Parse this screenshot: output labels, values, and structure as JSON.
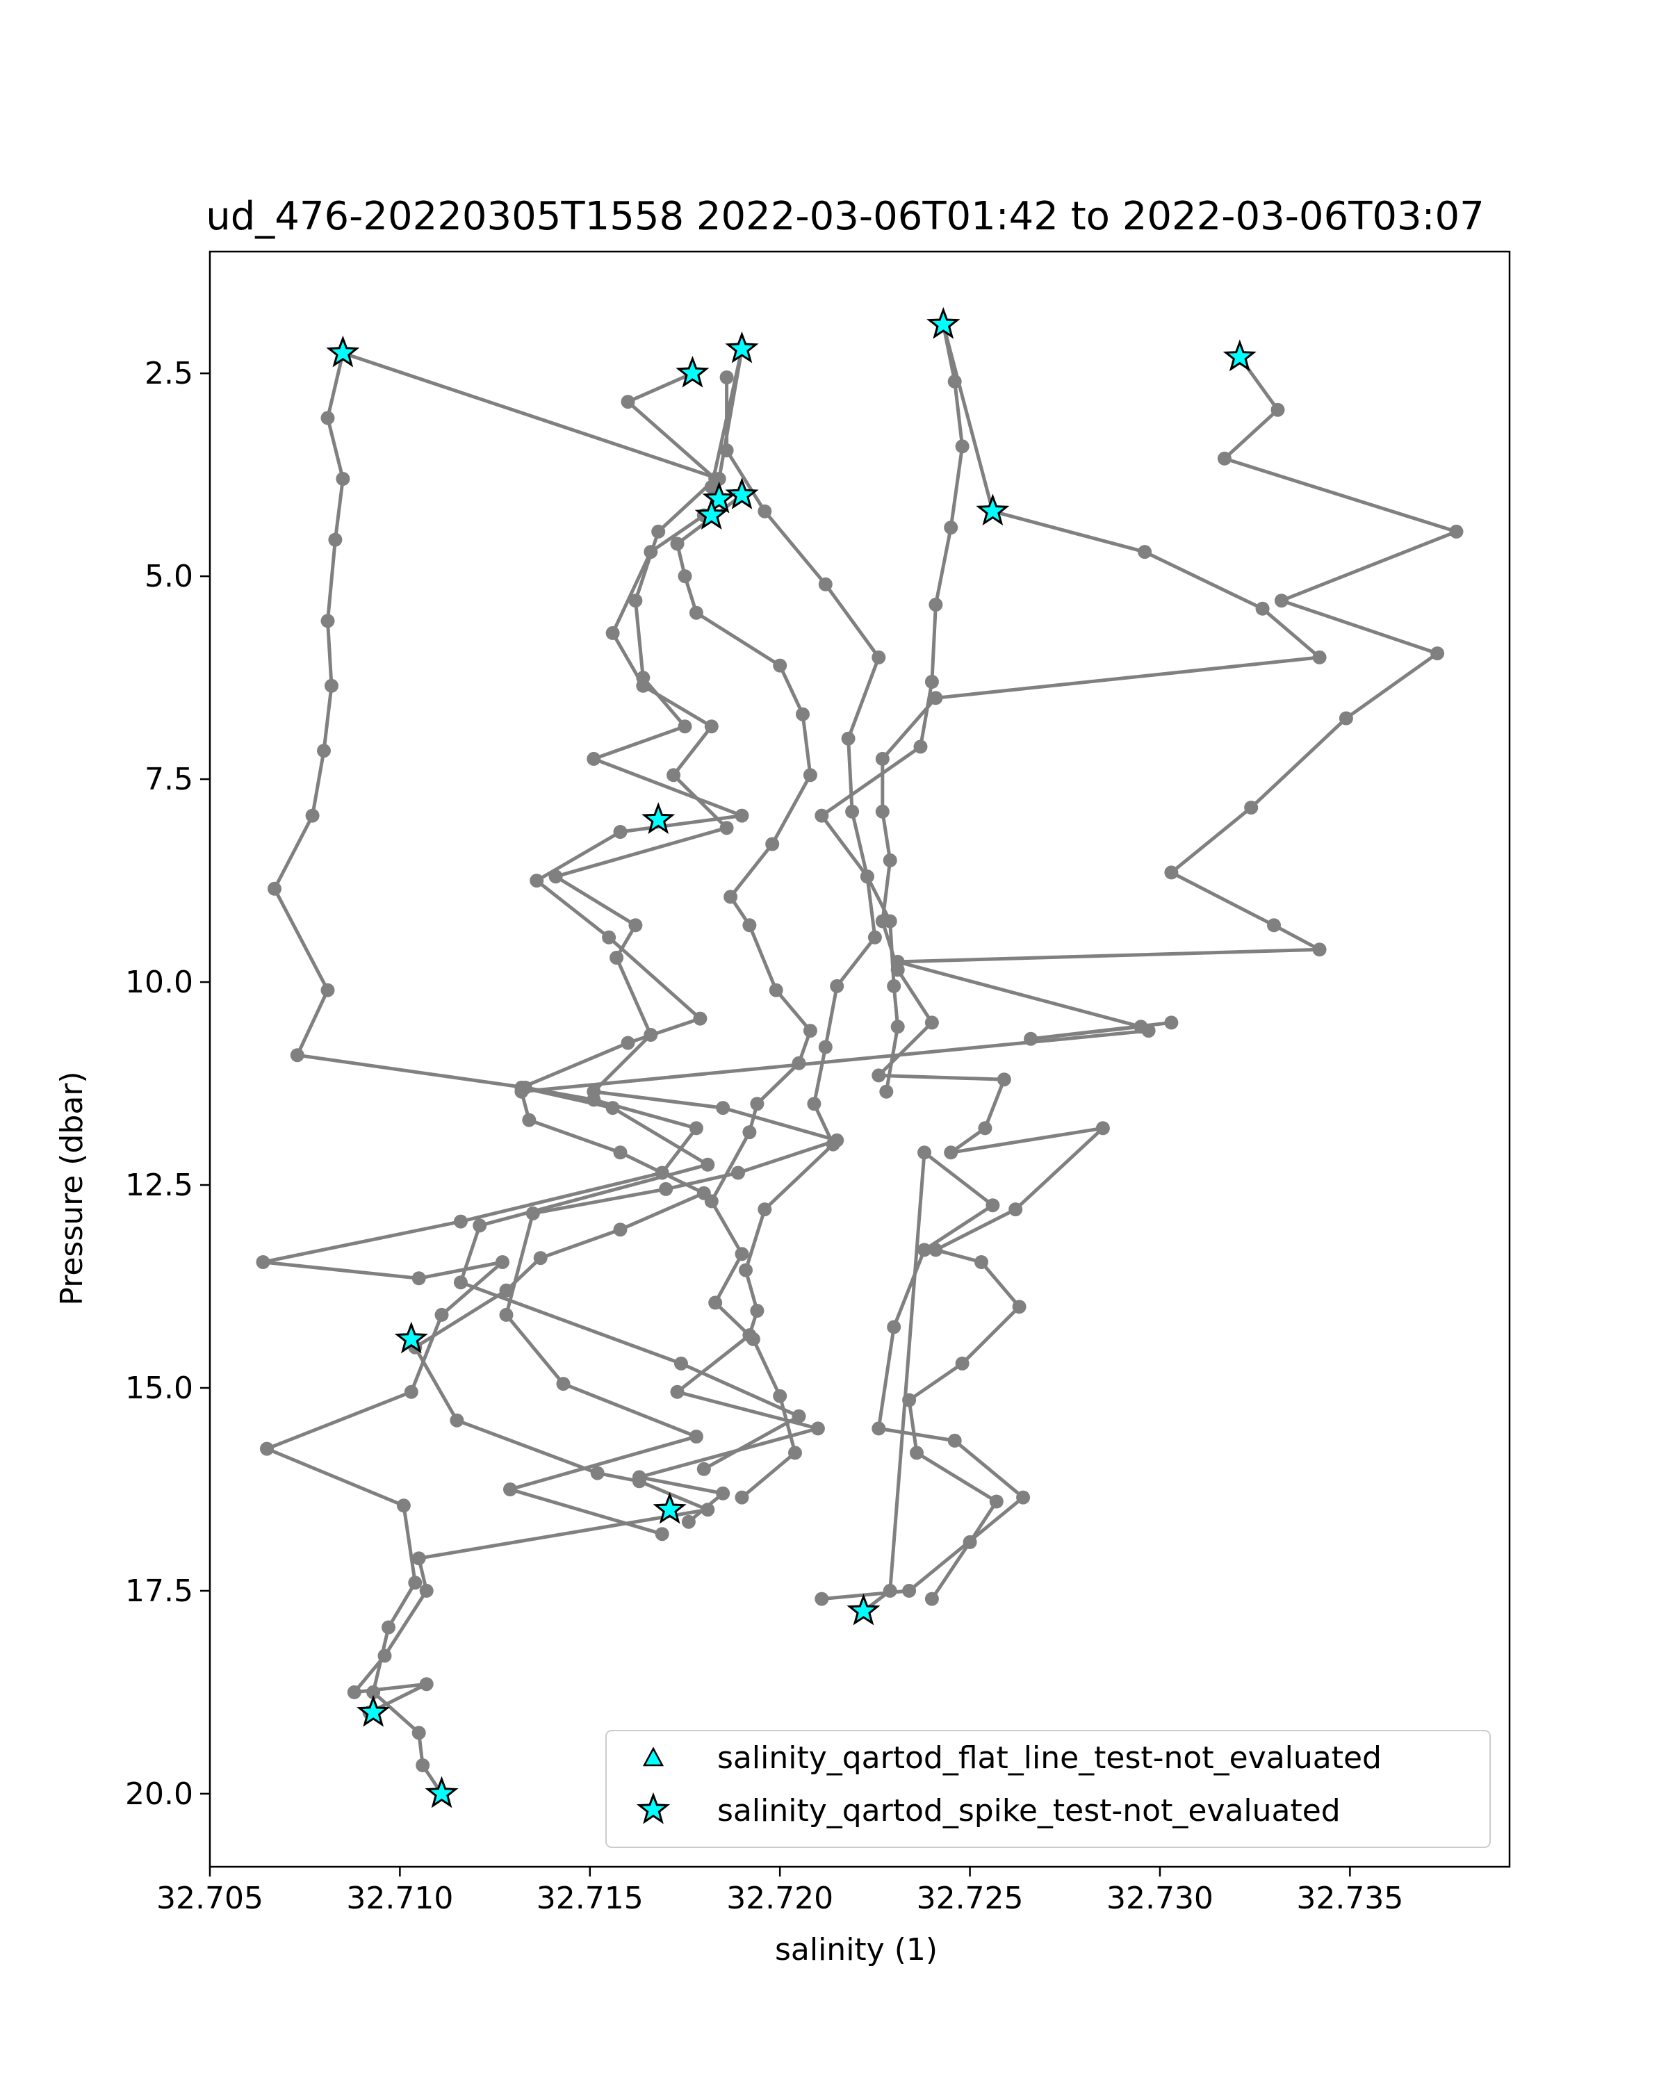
{
  "chart_data": {
    "type": "scatter",
    "title": "ud_476-20220305T1558 2022-03-06T01:42 to 2022-03-06T03:07",
    "xlabel": "salinity (1)",
    "ylabel": "Pressure (dbar)",
    "xlim": [
      32.705,
      32.7392
    ],
    "ylim": [
      20.9,
      1.0
    ],
    "y_inverted": true,
    "xticks": [
      "32.705",
      "32.710",
      "32.715",
      "32.720",
      "32.725",
      "32.730",
      "32.735"
    ],
    "xtick_values": [
      32.705,
      32.71,
      32.715,
      32.72,
      32.725,
      32.73,
      32.735
    ],
    "yticks": [
      "2.5",
      "5.0",
      "7.5",
      "10.0",
      "12.5",
      "15.0",
      "17.5",
      "20.0"
    ],
    "ytick_values": [
      2.5,
      5.0,
      7.5,
      10.0,
      12.5,
      15.0,
      17.5,
      20.0
    ],
    "grid": false,
    "legend_position": "lower-right",
    "colors": {
      "line": "#808080",
      "marker": "#00ffff",
      "marker_edge": "#000000"
    },
    "series": [
      {
        "name": "",
        "style": "line-markers",
        "points": [
          [
            32.7085,
            2.25
          ],
          [
            32.7081,
            3.05
          ],
          [
            32.7085,
            3.8
          ],
          [
            32.7083,
            4.55
          ],
          [
            32.7081,
            5.55
          ],
          [
            32.7082,
            6.35
          ],
          [
            32.708,
            7.15
          ],
          [
            32.7077,
            7.95
          ],
          [
            32.7067,
            8.85
          ],
          [
            32.7081,
            10.1
          ],
          [
            32.7073,
            10.9
          ],
          [
            32.7133,
            11.3
          ],
          [
            32.7151,
            11.45
          ],
          [
            32.7178,
            11.8
          ],
          [
            32.7169,
            12.35
          ],
          [
            32.7116,
            12.95
          ],
          [
            32.7064,
            13.45
          ],
          [
            32.7105,
            13.65
          ],
          [
            32.7127,
            13.45
          ],
          [
            32.7111,
            14.1
          ],
          [
            32.7103,
            15.05
          ],
          [
            32.7065,
            15.75
          ],
          [
            32.7101,
            16.45
          ],
          [
            32.7104,
            17.4
          ],
          [
            32.7097,
            17.95
          ],
          [
            32.7093,
            18.75
          ],
          [
            32.7105,
            19.25
          ],
          [
            32.7106,
            19.65
          ],
          [
            32.7111,
            20.0
          ]
        ]
      },
      {
        "name": "",
        "style": "line-markers",
        "points": [
          [
            32.7085,
            2.25
          ],
          [
            32.7184,
            3.8
          ],
          [
            32.719,
            2.2
          ],
          [
            32.7182,
            3.9
          ],
          [
            32.7184,
            4.05
          ],
          [
            32.718,
            4.25
          ],
          [
            32.7166,
            4.7
          ],
          [
            32.7156,
            5.7
          ],
          [
            32.7164,
            6.35
          ],
          [
            32.7182,
            6.85
          ],
          [
            32.7172,
            7.45
          ],
          [
            32.7186,
            8.1
          ],
          [
            32.7141,
            8.7
          ],
          [
            32.7162,
            9.3
          ],
          [
            32.7157,
            9.7
          ],
          [
            32.7166,
            10.65
          ],
          [
            32.7151,
            11.35
          ],
          [
            32.7185,
            11.55
          ],
          [
            32.7215,
            11.95
          ],
          [
            32.7189,
            12.35
          ],
          [
            32.717,
            12.55
          ],
          [
            32.7135,
            12.85
          ],
          [
            32.7128,
            14.1
          ],
          [
            32.7143,
            14.95
          ],
          [
            32.7178,
            15.6
          ],
          [
            32.7129,
            16.25
          ],
          [
            32.7169,
            16.8
          ]
        ]
      },
      {
        "name": "",
        "style": "line-markers",
        "points": [
          [
            32.7177,
            2.5
          ],
          [
            32.716,
            2.85
          ],
          [
            32.7183,
            3.8
          ],
          [
            32.7168,
            4.45
          ],
          [
            32.7162,
            5.3
          ],
          [
            32.7164,
            6.25
          ],
          [
            32.7175,
            6.85
          ],
          [
            32.7151,
            7.25
          ],
          [
            32.719,
            7.95
          ],
          [
            32.7158,
            8.15
          ],
          [
            32.7136,
            8.75
          ],
          [
            32.7155,
            9.45
          ],
          [
            32.7179,
            10.45
          ],
          [
            32.716,
            10.75
          ],
          [
            32.7132,
            11.3
          ],
          [
            32.7156,
            11.55
          ],
          [
            32.7181,
            12.25
          ],
          [
            32.7121,
            13.0
          ],
          [
            32.7116,
            13.7
          ],
          [
            32.7174,
            14.7
          ],
          [
            32.7205,
            15.35
          ],
          [
            32.718,
            16.0
          ]
        ]
      },
      {
        "name": "",
        "style": "line-markers",
        "points": [
          [
            32.719,
            4.0
          ],
          [
            32.7173,
            4.6
          ],
          [
            32.7175,
            5.0
          ],
          [
            32.7178,
            5.45
          ],
          [
            32.72,
            6.1
          ],
          [
            32.7206,
            6.7
          ],
          [
            32.7208,
            7.45
          ],
          [
            32.7198,
            8.3
          ],
          [
            32.7187,
            8.95
          ],
          [
            32.7192,
            9.3
          ],
          [
            32.7199,
            10.1
          ],
          [
            32.7208,
            10.6
          ],
          [
            32.7205,
            11.0
          ],
          [
            32.7194,
            11.5
          ],
          [
            32.7192,
            11.85
          ],
          [
            32.7182,
            12.7
          ],
          [
            32.719,
            13.35
          ],
          [
            32.7183,
            13.95
          ],
          [
            32.7193,
            14.4
          ],
          [
            32.72,
            15.1
          ],
          [
            32.7204,
            15.8
          ],
          [
            32.719,
            16.35
          ]
        ]
      },
      {
        "name": "",
        "style": "line-markers",
        "points": [
          [
            32.7186,
            2.55
          ],
          [
            32.7186,
            3.45
          ],
          [
            32.7196,
            4.2
          ],
          [
            32.7212,
            5.1
          ],
          [
            32.7226,
            6.0
          ],
          [
            32.7218,
            7.0
          ],
          [
            32.7219,
            7.9
          ],
          [
            32.7223,
            8.7
          ],
          [
            32.7229,
            9.25
          ],
          [
            32.723,
            10.05
          ],
          [
            32.7231,
            10.55
          ],
          [
            32.7228,
            11.35
          ]
        ]
      },
      {
        "name": "",
        "style": "line-markers",
        "points": [
          [
            32.7243,
            1.9
          ],
          [
            32.7246,
            2.6
          ],
          [
            32.7248,
            3.4
          ],
          [
            32.7245,
            4.4
          ],
          [
            32.7241,
            5.35
          ],
          [
            32.724,
            6.3
          ],
          [
            32.7237,
            7.1
          ],
          [
            32.7211,
            7.95
          ],
          [
            32.7223,
            8.7
          ],
          [
            32.7225,
            9.45
          ],
          [
            32.7215,
            10.05
          ],
          [
            32.7212,
            10.8
          ],
          [
            32.7209,
            11.5
          ],
          [
            32.7214,
            12.0
          ],
          [
            32.7196,
            12.8
          ],
          [
            32.7191,
            13.55
          ],
          [
            32.7194,
            14.05
          ],
          [
            32.7192,
            14.35
          ],
          [
            32.7173,
            15.05
          ],
          [
            32.721,
            15.5
          ],
          [
            32.7163,
            16.1
          ],
          [
            32.7185,
            16.3
          ],
          [
            32.7176,
            16.65
          ]
        ]
      },
      {
        "name": "",
        "style": "line-markers",
        "points": [
          [
            32.7243,
            1.9
          ],
          [
            32.7256,
            4.2
          ],
          [
            32.7296,
            4.7
          ],
          [
            32.7327,
            5.4
          ],
          [
            32.7342,
            6.0
          ],
          [
            32.7241,
            6.5
          ],
          [
            32.7227,
            7.25
          ],
          [
            32.7227,
            7.9
          ],
          [
            32.7229,
            8.5
          ],
          [
            32.7227,
            9.25
          ],
          [
            32.7231,
            9.85
          ],
          [
            32.724,
            10.5
          ],
          [
            32.7226,
            11.15
          ],
          [
            32.7259,
            11.2
          ],
          [
            32.7254,
            11.8
          ],
          [
            32.7245,
            12.1
          ],
          [
            32.7285,
            11.8
          ],
          [
            32.7262,
            12.8
          ],
          [
            32.7241,
            13.3
          ],
          [
            32.7253,
            13.45
          ],
          [
            32.7263,
            14.0
          ],
          [
            32.7248,
            14.7
          ],
          [
            32.7234,
            15.15
          ],
          [
            32.7236,
            15.8
          ],
          [
            32.7257,
            16.4
          ],
          [
            32.725,
            16.9
          ],
          [
            32.724,
            17.6
          ]
        ]
      },
      {
        "name": "",
        "style": "line-markers",
        "points": [
          [
            32.7321,
            2.3
          ],
          [
            32.7331,
            2.95
          ],
          [
            32.7317,
            3.55
          ],
          [
            32.7378,
            4.45
          ],
          [
            32.7332,
            5.3
          ],
          [
            32.7373,
            5.95
          ],
          [
            32.7349,
            6.75
          ],
          [
            32.7324,
            7.85
          ],
          [
            32.7303,
            8.65
          ],
          [
            32.733,
            9.3
          ],
          [
            32.7342,
            9.6
          ],
          [
            32.7231,
            9.75
          ],
          [
            32.7295,
            10.55
          ],
          [
            32.7266,
            10.7
          ],
          [
            32.7303,
            10.5
          ]
        ]
      },
      {
        "name": "",
        "style": "line-markers",
        "points": [
          [
            32.7297,
            10.6
          ],
          [
            32.7132,
            11.35
          ],
          [
            32.7134,
            11.7
          ],
          [
            32.7158,
            12.1
          ],
          [
            32.718,
            12.6
          ],
          [
            32.7158,
            13.05
          ],
          [
            32.7137,
            13.4
          ],
          [
            32.7128,
            13.8
          ],
          [
            32.7104,
            14.5
          ],
          [
            32.7115,
            15.4
          ],
          [
            32.7152,
            16.05
          ],
          [
            32.7163,
            16.15
          ],
          [
            32.7181,
            16.5
          ],
          [
            32.7105,
            17.1
          ],
          [
            32.7107,
            17.5
          ],
          [
            32.7096,
            18.3
          ],
          [
            32.7088,
            18.75
          ],
          [
            32.7107,
            18.65
          ],
          [
            32.7092,
            19.0
          ]
        ]
      },
      {
        "name": "",
        "style": "line-markers",
        "points": [
          [
            32.7211,
            17.6
          ],
          [
            32.7234,
            17.5
          ],
          [
            32.7264,
            16.35
          ],
          [
            32.7246,
            15.65
          ],
          [
            32.7226,
            15.5
          ],
          [
            32.723,
            14.25
          ],
          [
            32.7238,
            13.3
          ],
          [
            32.7256,
            12.75
          ],
          [
            32.7238,
            12.1
          ],
          [
            32.7229,
            17.5
          ],
          [
            32.7222,
            17.75
          ]
        ]
      },
      {
        "name": "salinity_qartod_spike_test-not_evaluated",
        "style": "markers",
        "marker": "star",
        "points": [
          [
            32.7085,
            2.25
          ],
          [
            32.7177,
            2.5
          ],
          [
            32.719,
            2.2
          ],
          [
            32.7243,
            1.9
          ],
          [
            32.7321,
            2.3
          ],
          [
            32.719,
            4.0
          ],
          [
            32.7184,
            4.05
          ],
          [
            32.7182,
            4.25
          ],
          [
            32.7256,
            4.2
          ],
          [
            32.7168,
            8.0
          ],
          [
            32.7103,
            14.4
          ],
          [
            32.7171,
            16.5
          ],
          [
            32.7222,
            17.75
          ],
          [
            32.7093,
            19.0
          ],
          [
            32.7111,
            20.0
          ]
        ]
      },
      {
        "name": "salinity_qartod_flat_line_test-not_evaluated",
        "style": "markers",
        "marker": "triangle",
        "points": []
      }
    ],
    "legend": [
      {
        "label": "salinity_qartod_flat_line_test-not_evaluated",
        "marker": "triangle"
      },
      {
        "label": "salinity_qartod_spike_test-not_evaluated",
        "marker": "star"
      }
    ]
  }
}
